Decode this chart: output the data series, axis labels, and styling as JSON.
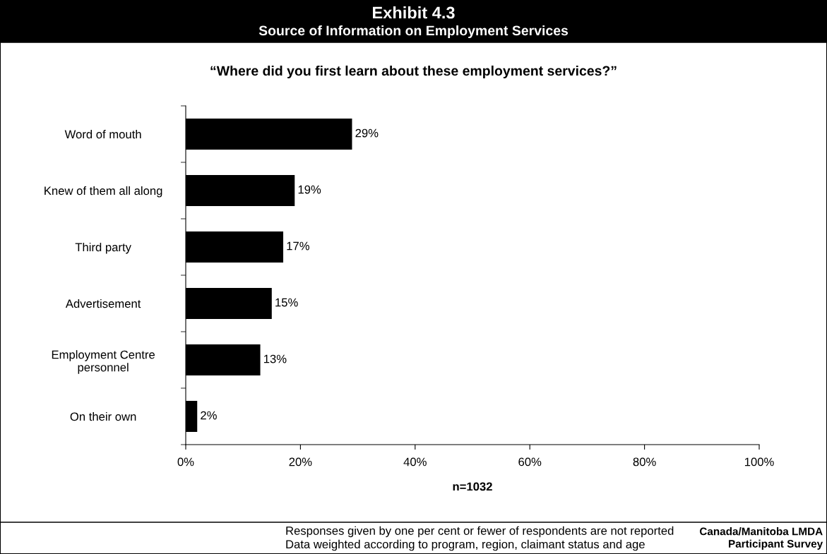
{
  "chart_data": {
    "type": "bar",
    "orientation": "horizontal",
    "title": "Exhibit 4.3",
    "subtitle": "Source of Information on Employment Services",
    "xlabel": "n=1032",
    "categories": [
      "Word of mouth",
      "Knew of them all along",
      "Third party",
      "Advertisement",
      "Employment Centre\npersonnel",
      "On their own"
    ],
    "values": [
      29,
      19,
      17,
      15,
      13,
      2
    ],
    "value_labels": [
      "29%",
      "19%",
      "17%",
      "15%",
      "13%",
      "2%"
    ],
    "color": "#000000",
    "xlim": [
      0,
      100
    ],
    "xticks": [
      {
        "value": 0,
        "label": "0%"
      },
      {
        "value": 20,
        "label": "20%"
      },
      {
        "value": 40,
        "label": "40%"
      },
      {
        "value": 60,
        "label": "60%"
      },
      {
        "value": 80,
        "label": "80%"
      },
      {
        "value": 100,
        "label": "100%"
      }
    ],
    "grid": false,
    "legend": false,
    "annotations": [
      "“Where did you first learn about these employment services?”",
      "Responses given by one per cent or fewer of respondents are not reported\nData weighted according to program, region, claimant status and age",
      "Canada/Manitoba LMDA\nParticipant Survey"
    ]
  }
}
